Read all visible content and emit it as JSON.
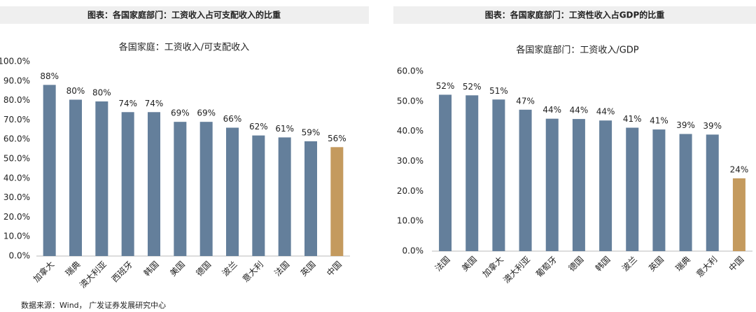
{
  "panels": [
    {
      "heading": "图表：各国家庭部门：工资收入占可支配收入的比重"
    },
    {
      "heading": "图表：各国家庭部门：工资性收入占GDP的比重"
    }
  ],
  "chart_data": [
    {
      "type": "bar",
      "title": "各国家庭：工资收入/可支配收入",
      "categories": [
        "加拿大",
        "瑞典",
        "澳大利亚",
        "西班牙",
        "韩国",
        "美国",
        "德国",
        "波兰",
        "意大利",
        "法国",
        "英国",
        "中国"
      ],
      "values": [
        88,
        80.4,
        79.5,
        74,
        74,
        69,
        69,
        66,
        62,
        61,
        59,
        56
      ],
      "value_labels": [
        "88%",
        "80%",
        "80%",
        "74%",
        "74%",
        "69%",
        "69%",
        "66%",
        "62%",
        "61%",
        "59%",
        "56%"
      ],
      "colors": [
        "#647f9b",
        "#647f9b",
        "#647f9b",
        "#647f9b",
        "#647f9b",
        "#647f9b",
        "#647f9b",
        "#647f9b",
        "#647f9b",
        "#647f9b",
        "#647f9b",
        "#c49a5e"
      ],
      "ylim": [
        0,
        100
      ],
      "yticks": [
        {
          "value": 0,
          "label": "0.0%"
        },
        {
          "value": 10,
          "label": "10.0%"
        },
        {
          "value": 20,
          "label": "20.0%"
        },
        {
          "value": 30,
          "label": "30.0%"
        },
        {
          "value": 40,
          "label": "40.0%"
        },
        {
          "value": 50,
          "label": "50.0%"
        },
        {
          "value": 60,
          "label": "60.0%"
        },
        {
          "value": 70,
          "label": "70.0%"
        },
        {
          "value": 80,
          "label": "80.0%"
        },
        {
          "value": 90,
          "label": "90.0%"
        },
        {
          "value": 100,
          "label": "100.0%"
        }
      ],
      "grid": false
    },
    {
      "type": "bar",
      "title": "各国家庭部门：工资收入/GDP",
      "categories": [
        "法国",
        "美国",
        "加拿大",
        "澳大利亚",
        "葡萄牙",
        "德国",
        "韩国",
        "波兰",
        "英国",
        "瑞典",
        "意大利",
        "中国"
      ],
      "values": [
        52.2,
        52,
        50.6,
        47.2,
        44.2,
        44.1,
        43.6,
        41.2,
        40.6,
        39.1,
        38.9,
        24.3
      ],
      "value_labels": [
        "52%",
        "52%",
        "51%",
        "47%",
        "44%",
        "44%",
        "44%",
        "41%",
        "41%",
        "39%",
        "39%",
        "24%"
      ],
      "colors": [
        "#647f9b",
        "#647f9b",
        "#647f9b",
        "#647f9b",
        "#647f9b",
        "#647f9b",
        "#647f9b",
        "#647f9b",
        "#647f9b",
        "#647f9b",
        "#647f9b",
        "#c49a5e"
      ],
      "ylim": [
        0,
        60
      ],
      "yticks": [
        {
          "value": 0,
          "label": "0.0%"
        },
        {
          "value": 10,
          "label": "10.0%"
        },
        {
          "value": 20,
          "label": "20.0%"
        },
        {
          "value": 30,
          "label": "30.0%"
        },
        {
          "value": 40,
          "label": "40.0%"
        },
        {
          "value": 50,
          "label": "50.0%"
        },
        {
          "value": 60,
          "label": "60.0%"
        }
      ],
      "grid": false
    }
  ],
  "source": "数据来源：Wind， 广发证券发展研究中心"
}
